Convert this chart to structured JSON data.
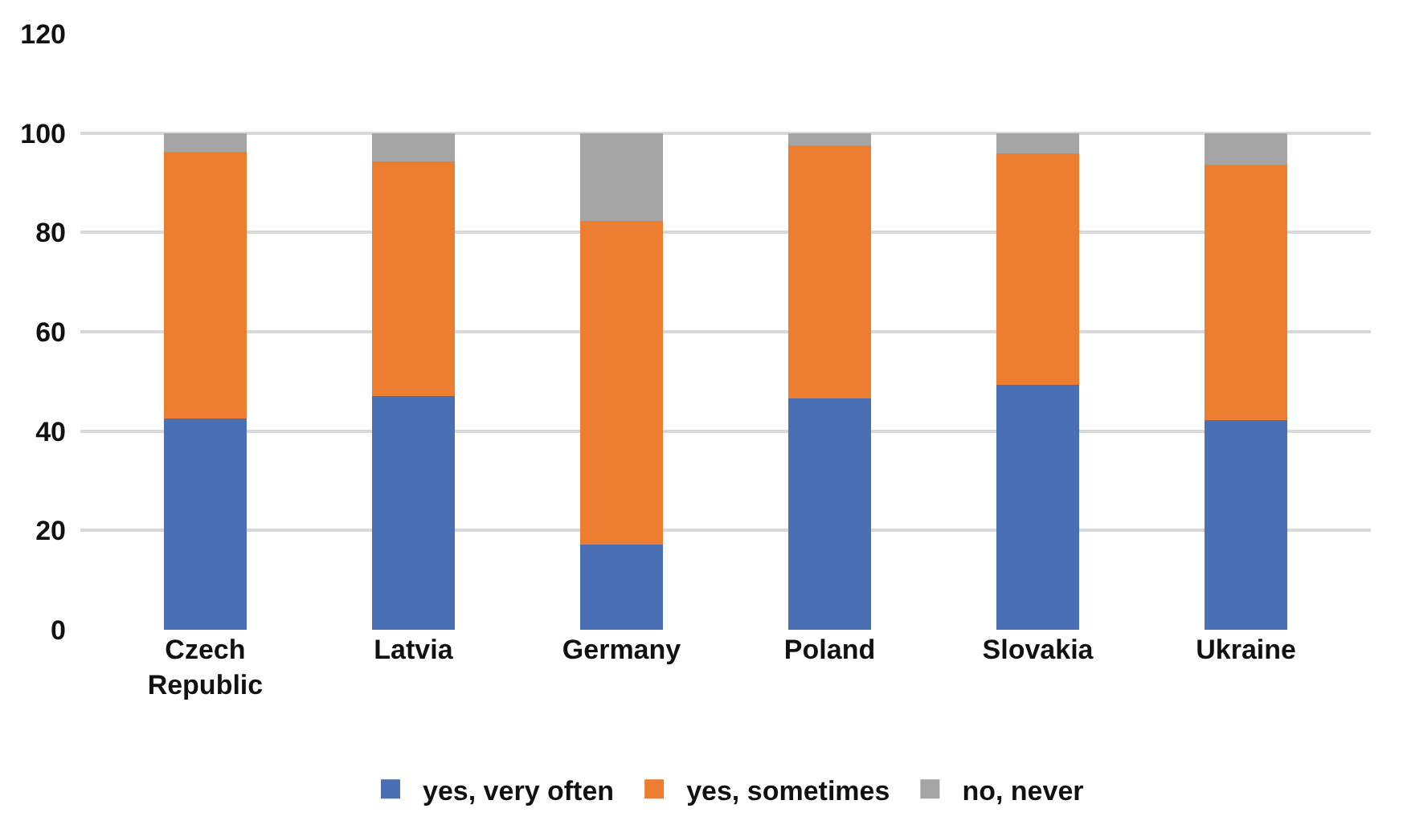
{
  "chart_data": {
    "type": "bar",
    "stacked": true,
    "categories": [
      "Czech Republic",
      "Latvia",
      "Germany",
      "Poland",
      "Slovakia",
      "Ukraine"
    ],
    "series": [
      {
        "name": "yes, very often",
        "color": "#4a6fb5",
        "values": [
          42.5,
          47.0,
          17.1,
          46.5,
          49.3,
          42.2
        ]
      },
      {
        "name": "yes, sometimes",
        "color": "#ed7d31",
        "values": [
          53.8,
          47.3,
          65.3,
          51.0,
          46.6,
          51.4
        ]
      },
      {
        "name": "no, never",
        "color": "#a5a5a5",
        "values": [
          3.7,
          5.7,
          17.6,
          2.5,
          4.1,
          6.4
        ]
      }
    ],
    "ylim": [
      0,
      120
    ],
    "yticks": [
      0,
      20,
      40,
      60,
      80,
      100,
      120
    ],
    "grid": "y",
    "legend": "bottom"
  }
}
